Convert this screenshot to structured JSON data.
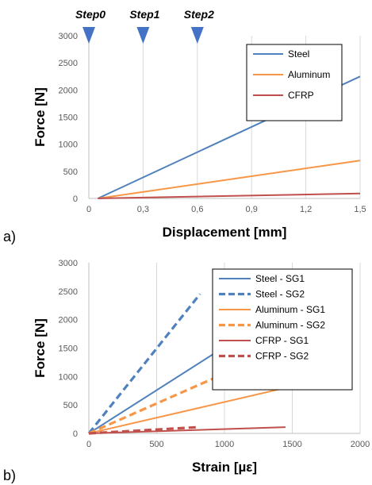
{
  "chart_data": [
    {
      "id": "a",
      "type": "line",
      "panel_label": "a)",
      "xlabel": "Displacement [mm]",
      "ylabel": "Force [N]",
      "xlim": [
        0,
        1.5
      ],
      "ylim": [
        0,
        3000
      ],
      "xticks": [
        "0",
        "0,3",
        "0,6",
        "0,9",
        "1,2",
        "1,5"
      ],
      "yticks": [
        "0",
        "500",
        "1000",
        "1500",
        "2000",
        "2500",
        "3000"
      ],
      "grid": "vertical",
      "legend_position": "top-right",
      "steps": [
        {
          "label": "Step0",
          "x": 0
        },
        {
          "label": "Step1",
          "x": 0.3
        },
        {
          "label": "Step2",
          "x": 0.6
        }
      ],
      "step_marker_color": "#4472c4",
      "series": [
        {
          "name": "Steel",
          "color": "#4f81bd",
          "dash": "solid",
          "x": [
            0.05,
            1.5
          ],
          "y": [
            0,
            2250
          ]
        },
        {
          "name": "Aluminum",
          "color": "#f79646",
          "dash": "solid",
          "x": [
            0.05,
            1.5
          ],
          "y": [
            0,
            700
          ]
        },
        {
          "name": "CFRP",
          "color": "#c0504d",
          "dash": "solid",
          "x": [
            0.05,
            1.5
          ],
          "y": [
            0,
            90
          ]
        }
      ]
    },
    {
      "id": "b",
      "type": "line",
      "panel_label": "b)",
      "xlabel": "Strain [µε]",
      "ylabel": "Force [N]",
      "xlim": [
        0,
        2000
      ],
      "ylim": [
        0,
        3000
      ],
      "xticks": [
        "0",
        "500",
        "1000",
        "1500",
        "2000"
      ],
      "yticks": [
        "0",
        "500",
        "1000",
        "1500",
        "2000",
        "2500",
        "3000"
      ],
      "grid": "vertical",
      "legend_position": "top-right",
      "series": [
        {
          "name": "Steel - SG1",
          "color": "#4f81bd",
          "dash": "solid",
          "x": [
            0,
            1480
          ],
          "y": [
            0,
            2250
          ]
        },
        {
          "name": "Steel - SG2",
          "color": "#4f81bd",
          "dash": "dashed",
          "x": [
            0,
            820
          ],
          "y": [
            0,
            2450
          ]
        },
        {
          "name": "Aluminum - SG1",
          "color": "#f79646",
          "dash": "solid",
          "x": [
            0,
            1830
          ],
          "y": [
            0,
            1010
          ]
        },
        {
          "name": "Aluminum - SG2",
          "color": "#f79646",
          "dash": "dashed",
          "x": [
            0,
            960
          ],
          "y": [
            0,
            1010
          ]
        },
        {
          "name": "CFRP - SG1",
          "color": "#c0504d",
          "dash": "solid",
          "x": [
            0,
            1450
          ],
          "y": [
            0,
            110
          ]
        },
        {
          "name": "CFRP - SG2",
          "color": "#c0504d",
          "dash": "dashed",
          "x": [
            0,
            810
          ],
          "y": [
            0,
            110
          ]
        }
      ]
    }
  ]
}
